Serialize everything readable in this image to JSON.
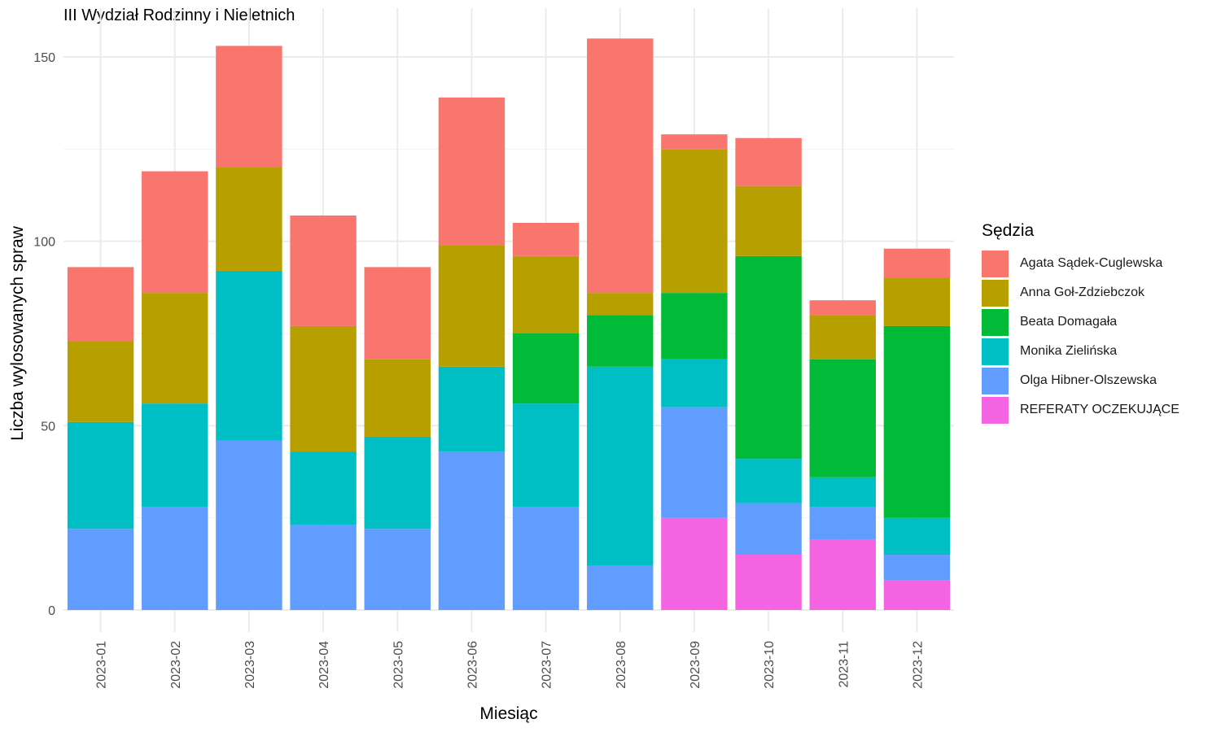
{
  "chart_data": {
    "type": "bar",
    "stacked": true,
    "title": "III Wydział Rodzinny i Nieletnich",
    "xlabel": "Miesiąc",
    "ylabel": "Liczba wylosowanych spraw",
    "ylim": [
      0,
      157
    ],
    "yticks": [
      0,
      50,
      100,
      150
    ],
    "grid": true,
    "legend_title": "Sędzia",
    "legend_position": "right",
    "categories": [
      "2023-01",
      "2023-02",
      "2023-03",
      "2023-04",
      "2023-05",
      "2023-06",
      "2023-07",
      "2023-08",
      "2023-09",
      "2023-10",
      "2023-11",
      "2023-12"
    ],
    "series": [
      {
        "name": "Agata Sądek-Cuglewska",
        "color": "#F8766D",
        "values": [
          20,
          33,
          33,
          30,
          25,
          40,
          9,
          69,
          4,
          13,
          4,
          8
        ]
      },
      {
        "name": "Anna Goł-Zdziebczok",
        "color": "#B79F00",
        "values": [
          22,
          30,
          28,
          34,
          21,
          33,
          21,
          6,
          39,
          19,
          12,
          13
        ]
      },
      {
        "name": "Beata Domagała",
        "color": "#00BA38",
        "values": [
          0,
          0,
          0,
          0,
          0,
          0,
          19,
          14,
          18,
          55,
          32,
          52
        ]
      },
      {
        "name": "Monika Zielińska",
        "color": "#00BFC4",
        "values": [
          29,
          28,
          46,
          20,
          25,
          23,
          28,
          54,
          13,
          12,
          8,
          10
        ]
      },
      {
        "name": "Olga Hibner-Olszewska",
        "color": "#619CFF",
        "values": [
          22,
          28,
          46,
          23,
          22,
          43,
          28,
          12,
          30,
          14,
          9,
          7
        ]
      },
      {
        "name": "REFERATY OCZEKUJĄCE",
        "color": "#F564E3",
        "values": [
          0,
          0,
          0,
          0,
          0,
          0,
          0,
          0,
          25,
          15,
          19,
          8
        ]
      }
    ]
  }
}
